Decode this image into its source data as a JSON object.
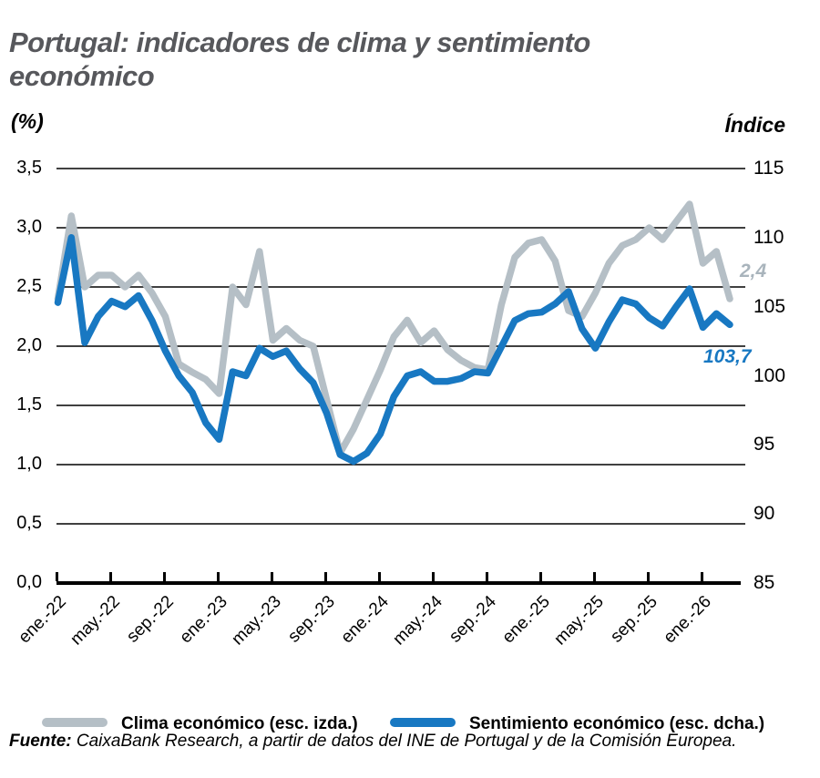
{
  "title": "Portugal: indicadores de clima y sentimiento económico",
  "axis_left_unit": "(%)",
  "axis_right_unit": "Índice",
  "end_labels": {
    "clima": "2,4",
    "sentimiento": "103,7"
  },
  "legend": [
    {
      "label": "Clima económico (esc. izda.)",
      "color": "#b5bfc6"
    },
    {
      "label": "Sentimiento económico (esc. dcha.)",
      "color": "#1878c2"
    }
  ],
  "source": {
    "prefix": "Fuente:",
    "text": " CaixaBank Research, a partir de datos del INE de Portugal y de la Comisión Europea."
  },
  "colors": {
    "grid": "#000000",
    "axis": "#000000",
    "title": "#57585c"
  },
  "chart_data": {
    "type": "line",
    "title": "Portugal: indicadores de clima y sentimiento económico",
    "x_tick_labels": [
      "ene.-22",
      "may.-22",
      "sep.-22",
      "ene.-23",
      "may.-23",
      "sep.-23",
      "ene.-24",
      "may.-24",
      "sep.-24",
      "ene.-25",
      "may.-25",
      "sep.-25",
      "ene.-26"
    ],
    "left_axis": {
      "label": "(%)",
      "tick_labels": [
        "3,5",
        "3,0",
        "2,5",
        "2,0",
        "1,5",
        "1,0",
        "0,5",
        "0,0"
      ],
      "range": [
        0,
        3.5
      ]
    },
    "right_axis": {
      "label": "Índice",
      "tick_labels": [
        "115",
        "110",
        "105",
        "100",
        "95",
        "90",
        "85"
      ],
      "range": [
        85,
        115
      ]
    },
    "grid": "horizontal",
    "legend_position": "bottom",
    "months": [
      "ene-22",
      "feb-22",
      "mar-22",
      "abr-22",
      "may-22",
      "jun-22",
      "jul-22",
      "ago-22",
      "sep-22",
      "oct-22",
      "nov-22",
      "dic-22",
      "ene-23",
      "feb-23",
      "mar-23",
      "abr-23",
      "may-23",
      "jun-23",
      "jul-23",
      "ago-23",
      "sep-23",
      "oct-23",
      "nov-23",
      "dic-23",
      "ene-24",
      "feb-24",
      "mar-24",
      "abr-24",
      "may-24",
      "jun-24",
      "jul-24",
      "ago-24",
      "sep-24",
      "oct-24",
      "nov-24",
      "dic-24",
      "ene-25",
      "feb-25",
      "mar-25",
      "abr-25",
      "may-25",
      "jun-25",
      "jul-25",
      "ago-25",
      "sep-25",
      "oct-25",
      "nov-25",
      "dic-25",
      "ene-26",
      "feb-26",
      "mar-26"
    ],
    "series": [
      {
        "name": "Clima económico (esc. izda.)",
        "axis": "left",
        "color": "#b5bfc6",
        "last_value_label": "2,4",
        "values": [
          2.4,
          3.1,
          2.5,
          2.6,
          2.6,
          2.5,
          2.6,
          2.45,
          2.25,
          1.85,
          1.78,
          1.72,
          1.6,
          2.5,
          2.35,
          2.8,
          2.05,
          2.15,
          2.05,
          2.0,
          1.55,
          1.1,
          1.3,
          1.55,
          1.8,
          2.08,
          2.22,
          2.03,
          2.13,
          1.97,
          1.88,
          1.82,
          1.8,
          2.35,
          2.75,
          2.87,
          2.9,
          2.72,
          2.3,
          2.25,
          2.45,
          2.7,
          2.85,
          2.9,
          3.0,
          2.9,
          3.05,
          3.2,
          2.7,
          2.8,
          2.4
        ]
      },
      {
        "name": "Sentimiento económico (esc. dcha.)",
        "axis": "right",
        "color": "#1878c2",
        "last_value_label": "103,7",
        "values": [
          105.3,
          110.0,
          102.4,
          104.3,
          105.4,
          105.0,
          105.8,
          104.0,
          101.8,
          100.0,
          98.8,
          96.6,
          95.4,
          100.3,
          100.0,
          102.0,
          101.4,
          101.8,
          100.5,
          99.5,
          97.3,
          94.3,
          93.8,
          94.4,
          95.8,
          98.5,
          100.0,
          100.3,
          99.6,
          99.6,
          99.8,
          100.3,
          100.2,
          102.1,
          104.0,
          104.5,
          104.6,
          105.2,
          106.1,
          103.4,
          102.0,
          103.9,
          105.5,
          105.2,
          104.2,
          103.6,
          105.0,
          106.3,
          103.5,
          104.5,
          103.7
        ]
      }
    ]
  }
}
